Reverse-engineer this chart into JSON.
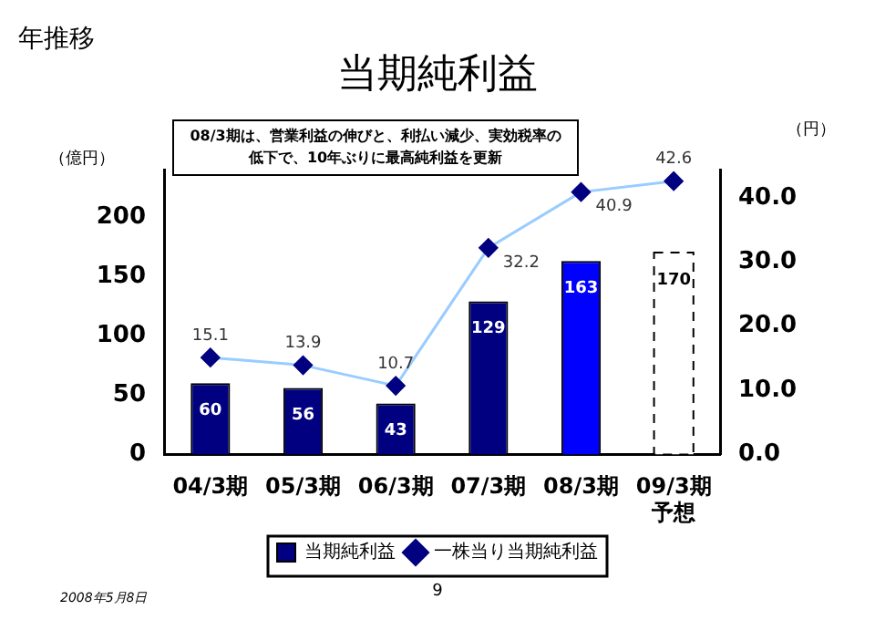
{
  "chart_data": {
    "type": "bar",
    "title": "当期純利益",
    "categories": [
      "04/3期",
      "05/3期",
      "06/3期",
      "07/3期",
      "08/3期",
      "09/3期予想"
    ],
    "series": [
      {
        "name": "当期純利益",
        "color": "#000080",
        "colors": [
          "#000080",
          "#000080",
          "#000080",
          "#000080",
          "#0000ff",
          "#000080"
        ],
        "values": [
          60,
          56,
          43,
          129,
          163,
          null
        ]
      },
      {
        "color": "#ffffff",
        "line_style": "dashed",
        "values": [
          null,
          null,
          null,
          null,
          null,
          170
        ]
      },
      {
        "type": "line",
        "axis": "y2",
        "name": "一株当り当期純利益",
        "color": "#99ccff",
        "marker": "diamond",
        "values": [
          15.1,
          13.9,
          10.7,
          32.2,
          40.9,
          42.6
        ]
      }
    ],
    "ylabel": "（億円）",
    "y2label": "（円）",
    "ylim": [
      0,
      240
    ],
    "yticks": [
      0,
      50,
      100,
      150,
      200
    ],
    "y2lim": [
      0,
      44.4
    ],
    "y2ticks": [
      {
        "value": 0,
        "label": "0.0"
      },
      {
        "value": 10,
        "label": "10.0"
      },
      {
        "value": 20,
        "label": "20.0"
      },
      {
        "value": 30,
        "label": "30.0"
      },
      {
        "value": 40,
        "label": "40.0"
      }
    ],
    "data_labels": true,
    "grid": false,
    "legend": "bottom",
    "annotations": [
      "年推移",
      "08/3期は、営業利益の伸びと、利払い減少、実効税率の低下で、10年ぶりに最高純利益を更新",
      "2008年5月8日",
      "9"
    ]
  }
}
